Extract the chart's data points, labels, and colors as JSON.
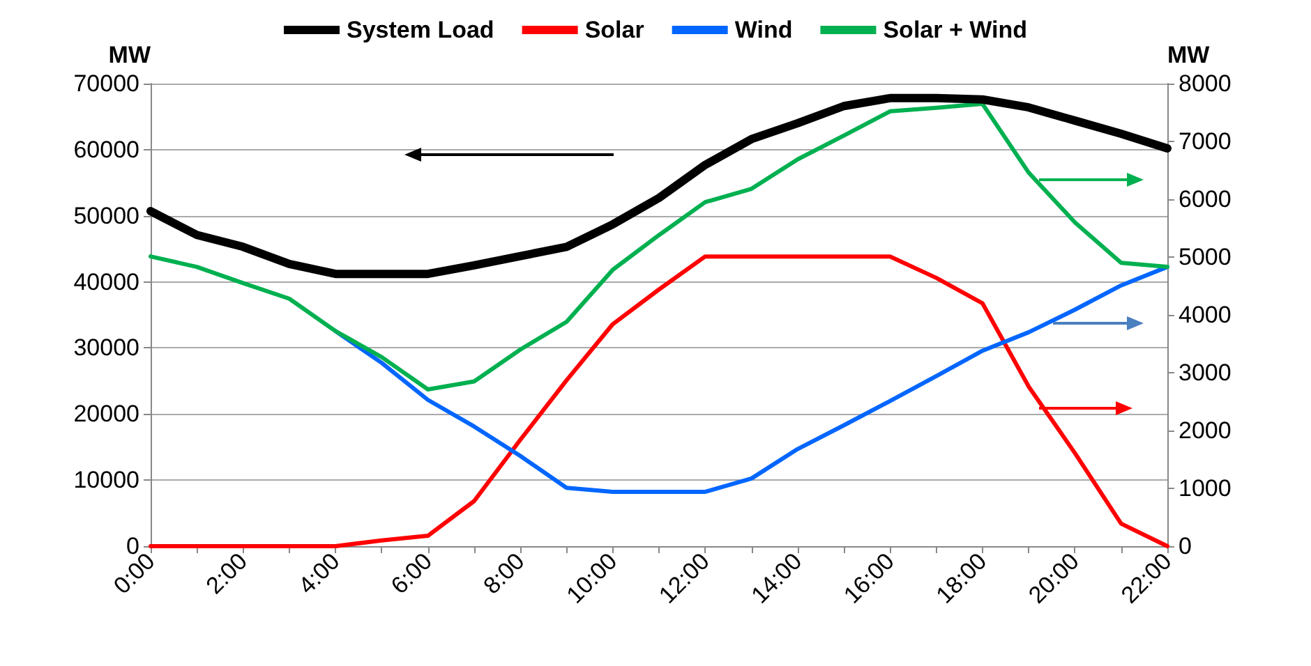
{
  "chart_data": {
    "type": "line",
    "ylabel": "MW",
    "y2label": "MW",
    "categories": [
      "0:00",
      null,
      "2:00",
      null,
      "4:00",
      null,
      "6:00",
      null,
      "8:00",
      null,
      "10:00",
      null,
      "12:00",
      null,
      "14:00",
      null,
      "16:00",
      null,
      "18:00",
      null,
      "20:00",
      null,
      "22:00"
    ],
    "series": [
      {
        "name": "System Load",
        "color": "#000000",
        "values": [
          50700,
          47100,
          45300,
          42700,
          41200,
          41200,
          41200,
          42500,
          43900,
          45300,
          48700,
          52700,
          57700,
          61600,
          64000,
          66600,
          67800,
          67800,
          67600,
          66400,
          64400,
          62400,
          60200
        ]
      },
      {
        "name": "Solar",
        "color": "#ff0000",
        "axis": "y2",
        "values": [
          0,
          0,
          0,
          0,
          0,
          100,
          180,
          780,
          1840,
          2870,
          3840,
          4440,
          5010,
          5010,
          5010,
          5010,
          5010,
          4640,
          4200,
          2760,
          1610,
          390,
          0
        ]
      },
      {
        "name": "Wind",
        "color": "#0066ff",
        "axis": "y2",
        "values": [
          null,
          null,
          null,
          null,
          3720,
          3170,
          2530,
          2070,
          1560,
          1010,
          940,
          940,
          940,
          1170,
          1680,
          2090,
          2510,
          2940,
          3380,
          3700,
          4090,
          4510,
          4830
        ]
      },
      {
        "name": "Solar + Wind",
        "color": "#00b050",
        "axis": "y2",
        "values": [
          5010,
          4830,
          4550,
          4280,
          3720,
          3270,
          2710,
          2850,
          3400,
          3880,
          4780,
          5380,
          5950,
          6180,
          6690,
          7100,
          7520,
          7580,
          7650,
          6460,
          5600,
          4900,
          4830
        ]
      }
    ],
    "ylim": [
      0,
      70000
    ],
    "yticks": [
      0,
      10000,
      20000,
      30000,
      40000,
      50000,
      60000,
      70000
    ],
    "y2lim": [
      0,
      8000
    ],
    "y2ticks": [
      0,
      1000,
      2000,
      3000,
      4000,
      5000,
      6000,
      7000,
      8000
    ],
    "grid": "y",
    "legend": "top",
    "marker": "none",
    "line_style": "solid"
  }
}
